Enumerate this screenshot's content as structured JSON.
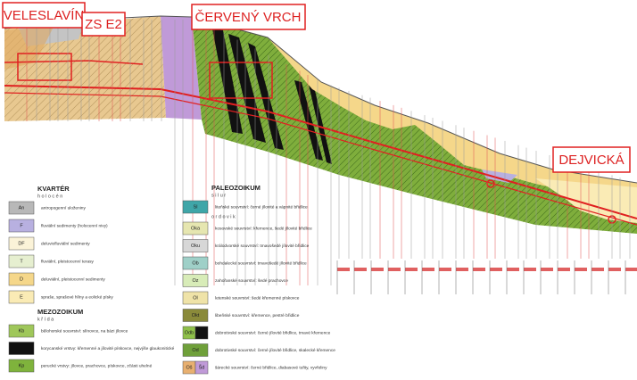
{
  "stations": [
    "VELESLAVÍN",
    "ZS E2",
    "ČERVENÝ VRCH",
    "DEJVICKÁ"
  ],
  "legend": {
    "groups": [
      {
        "title": "KVARTÉR",
        "sections": [
          {
            "subtitle": "holocén",
            "items": [
              {
                "swatches": [
                  {
                    "code": "An",
                    "color": "#b8b8b8"
                  }
                ],
                "text": "antropogenní uloženiny"
              },
              {
                "swatches": [
                  {
                    "code": "F",
                    "color": "#b8b0e0"
                  }
                ],
                "text": "fluviální sedimenty (holocenní nivy)"
              },
              {
                "swatches": [
                  {
                    "code": "DF",
                    "color": "#fbf3d8"
                  }
                ],
                "text": "deluviofluviální sedimenty"
              },
              {
                "swatches": [
                  {
                    "code": "T",
                    "color": "#e6efd0"
                  }
                ],
                "text": "fluviální, pleistocenní terasy"
              },
              {
                "swatches": [
                  {
                    "code": "D",
                    "color": "#f5d78a"
                  }
                ],
                "text": "deluviální, pleistocenní sedimenty"
              },
              {
                "swatches": [
                  {
                    "code": "E",
                    "color": "#faebb5"
                  }
                ],
                "text": "spraše, sprašové hlíny a eolické písky"
              }
            ]
          }
        ]
      },
      {
        "title": "MEZOZOIKUM",
        "sections": [
          {
            "subtitle": "křída",
            "items": [
              {
                "swatches": [
                  {
                    "code": "Kb",
                    "color": "#9fc75a"
                  }
                ],
                "text": "bělohorské souvrství: slínovce, na bázi jílovce"
              },
              {
                "swatches": [
                  {
                    "color": "#111111"
                  }
                ],
                "text": "korycanské vrstvy: křemenné a jílovité pískovce, nejvýše glaukonitické"
              },
              {
                "swatches": [
                  {
                    "code": "Kp",
                    "color": "#7fb33c"
                  }
                ],
                "text": "perucké vrstvy: jílovce, prachovce, pískovce, zčásti uhelné"
              }
            ]
          }
        ]
      },
      {
        "title": "PALEOZOIKUM",
        "sections": [
          {
            "subtitle": "silur",
            "items": [
              {
                "swatches": [
                  {
                    "code": "Sl",
                    "color": "#3fa6a8"
                  }
                ],
                "text": "liteňské souvrství: černé jílovité a vápnité břidlice"
              }
            ]
          },
          {
            "subtitle": "ordovik",
            "items": [
              {
                "swatches": [
                  {
                    "code": "Oka",
                    "color": "#e6e6b0"
                  }
                ],
                "text": "kosovské souvrství: křemence, šedé jílovité břidlice"
              },
              {
                "swatches": [
                  {
                    "code": "Oku",
                    "color": "#d7d7d7"
                  }
                ],
                "text": "králodvorské souvrství: tmavošedé jílovité břidlice"
              },
              {
                "swatches": [
                  {
                    "code": "Ob",
                    "color": "#9fd0c8"
                  }
                ],
                "text": "bohdalecké souvrství: tmavošedé jílovité břidlice"
              },
              {
                "swatches": [
                  {
                    "code": "Oz",
                    "color": "#d8ecb8"
                  }
                ],
                "text": "zahořanské souvrství: šedé prachovce"
              },
              {
                "swatches": [
                  {
                    "code": "Ol",
                    "color": "#efe3a8"
                  }
                ],
                "text": "letenské souvrství: šedé křemenné pískovce"
              },
              {
                "swatches": [
                  {
                    "code": "Okt",
                    "color": "#8a8a3a"
                  }
                ],
                "text": "libeňské souvrství: křemence, pestré břidlice"
              },
              {
                "swatches": [
                  {
                    "code": "Odb",
                    "color": "#8fc04a"
                  },
                  {
                    "color": "#111111"
                  }
                ],
                "text": "dobrotivské souvrství: černé jílovité břidlice, tmavé křemence"
              },
              {
                "swatches": [
                  {
                    "code": "Od",
                    "color": "#6fa03a"
                  }
                ],
                "text": "dobrotivské souvrství: černé jílovité břidlice, skalecké křemence"
              },
              {
                "swatches": [
                  {
                    "code": "Oš",
                    "color": "#e8b070"
                  },
                  {
                    "code": "Šd",
                    "color": "#c09ad8"
                  }
                ],
                "text": "šárecké souvrství: černé břidlice, diabasové tufity, vyvřeliny"
              }
            ]
          }
        ]
      }
    ]
  }
}
